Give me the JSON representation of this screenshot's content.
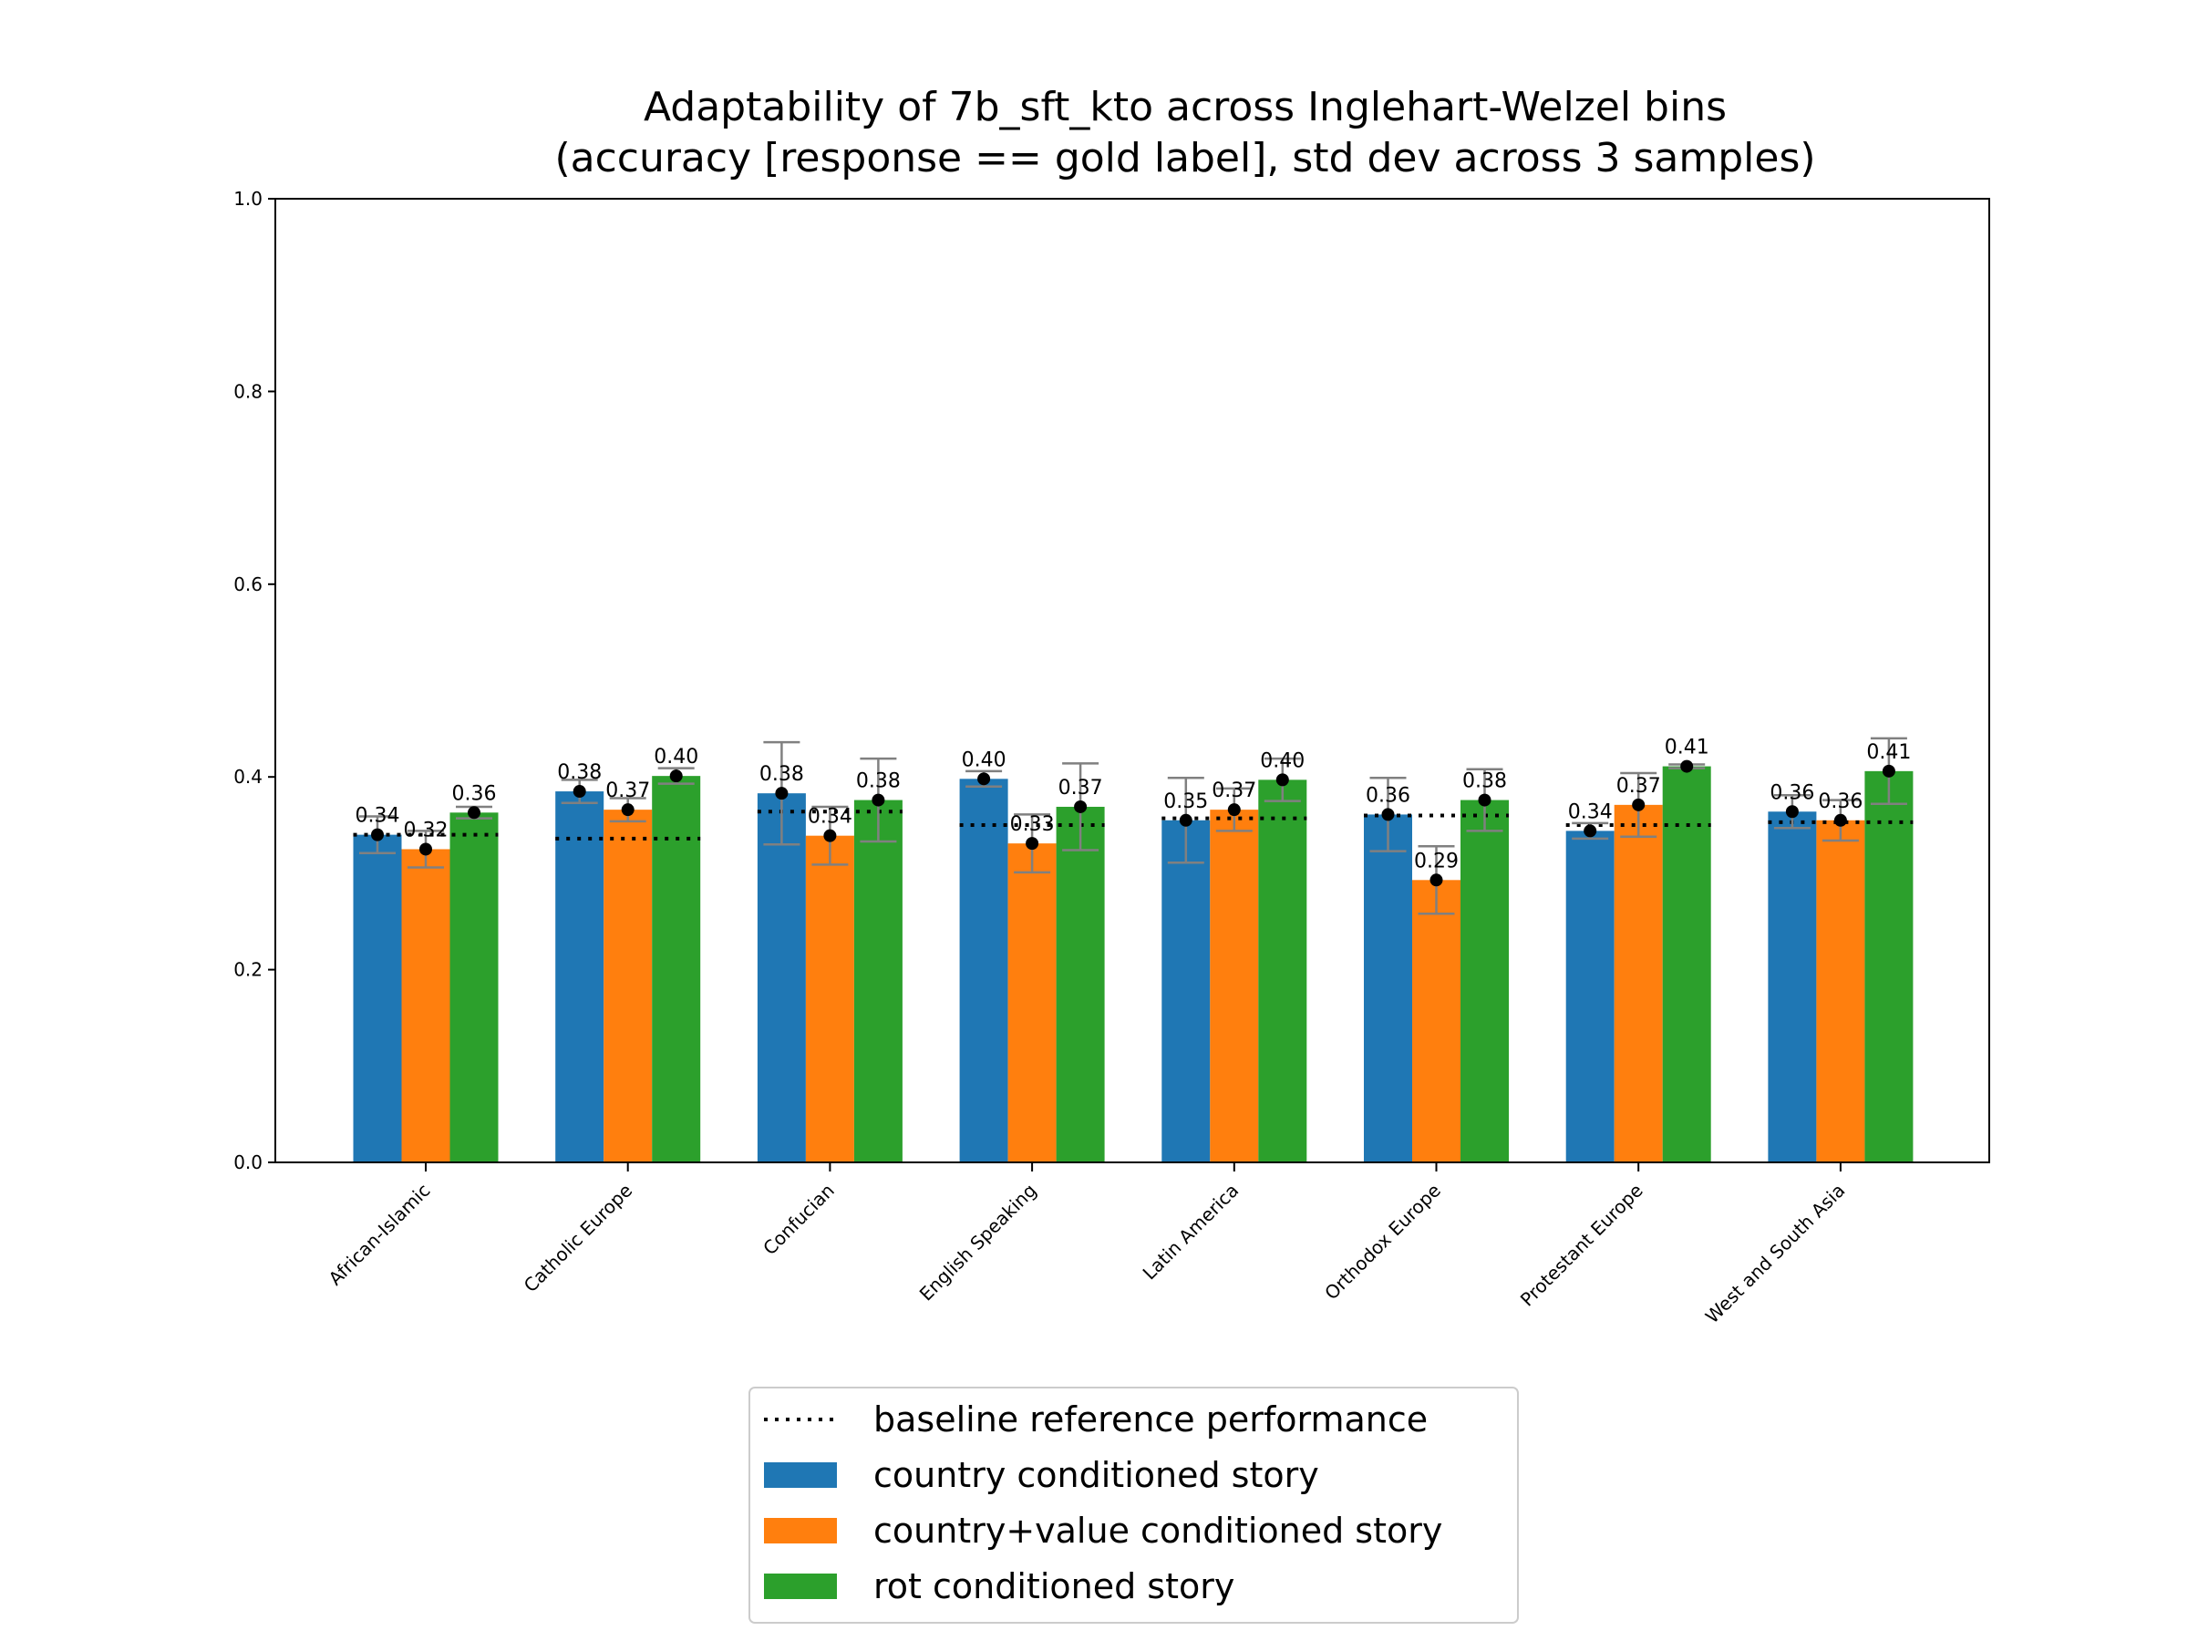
{
  "chart_data": {
    "type": "bar",
    "title_line1": "Adaptability of 7b_sft_kto across Inglehart-Welzel bins",
    "title_line2": "(accuracy [response == gold label], std dev across 3 samples)",
    "xlabel": "",
    "ylabel": "",
    "ylim": [
      0,
      1.0
    ],
    "yticks": [
      "0.0",
      "0.2",
      "0.4",
      "0.6",
      "0.8",
      "1.0"
    ],
    "categories": [
      "African-Islamic",
      "Catholic Europe",
      "Confucian",
      "English Speaking",
      "Latin America",
      "Orthodox Europe",
      "Protestant Europe",
      "West and South Asia"
    ],
    "baseline": {
      "name": "baseline reference performance",
      "values": [
        0.34,
        0.336,
        0.364,
        0.35,
        0.357,
        0.36,
        0.35,
        0.353
      ]
    },
    "series": [
      {
        "name": "country conditioned story",
        "color": "#1f77b4",
        "values": [
          0.34,
          0.385,
          0.383,
          0.398,
          0.355,
          0.361,
          0.344,
          0.364
        ],
        "std": [
          0.019,
          0.012,
          0.053,
          0.008,
          0.044,
          0.038,
          0.008,
          0.017
        ],
        "labels": [
          "0.34",
          "0.38",
          "0.38",
          "0.40",
          "0.35",
          "0.36",
          "0.34",
          "0.36"
        ]
      },
      {
        "name": "country+value conditioned story",
        "color": "#ff7f0e",
        "values": [
          0.325,
          0.366,
          0.339,
          0.331,
          0.366,
          0.293,
          0.371,
          0.355
        ],
        "std": [
          0.019,
          0.012,
          0.03,
          0.03,
          0.022,
          0.035,
          0.033,
          0.021
        ],
        "labels": [
          "0.32",
          "0.37",
          "0.34",
          "0.33",
          "0.37",
          "0.29",
          "0.37",
          "0.36"
        ]
      },
      {
        "name": "rot conditioned story",
        "color": "#2ca02c",
        "values": [
          0.363,
          0.401,
          0.376,
          0.369,
          0.397,
          0.376,
          0.411,
          0.406
        ],
        "std": [
          0.006,
          0.008,
          0.043,
          0.045,
          0.022,
          0.032,
          0.002,
          0.034
        ],
        "labels": [
          "0.36",
          "0.40",
          "0.38",
          "0.37",
          "0.40",
          "0.38",
          "0.41",
          "0.41"
        ]
      }
    ],
    "legend_position": "below plot, center"
  }
}
